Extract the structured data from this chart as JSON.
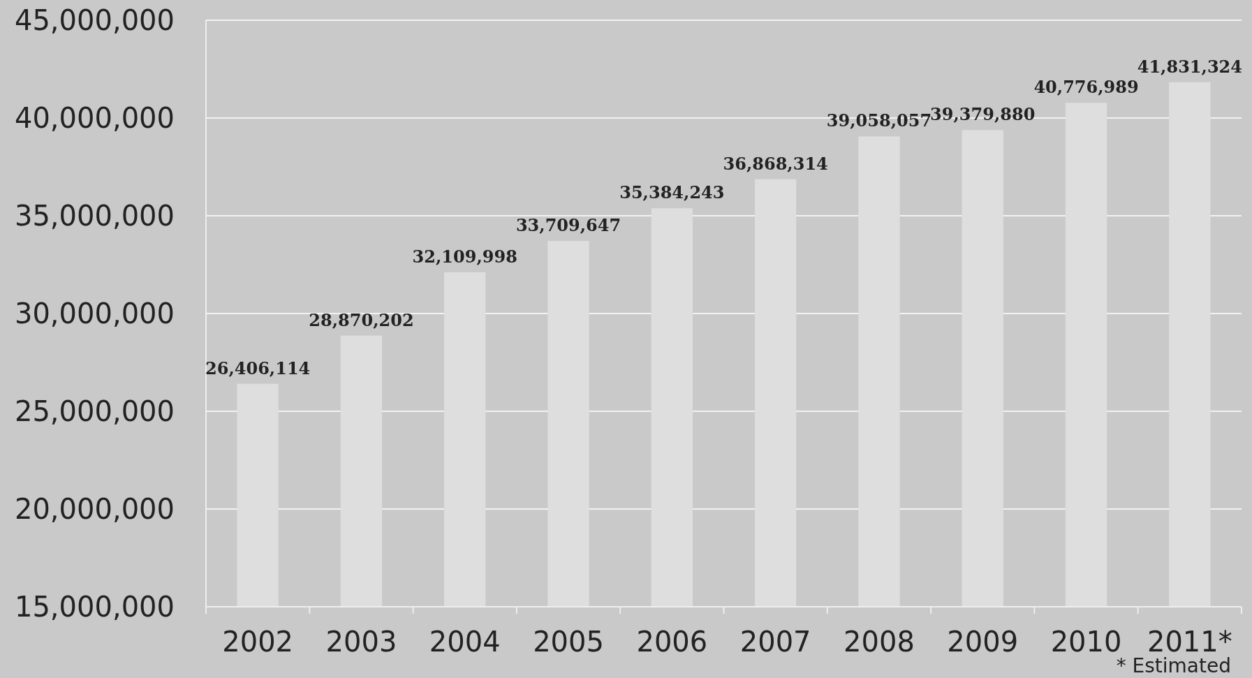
{
  "chart_data": {
    "type": "bar",
    "categories": [
      "2002",
      "2003",
      "2004",
      "2005",
      "2006",
      "2007",
      "2008",
      "2009",
      "2010",
      "2011*"
    ],
    "values": [
      26406114,
      28870202,
      32109998,
      33709647,
      35384243,
      36868314,
      39058057,
      39379880,
      40776989,
      41831324
    ],
    "value_labels": [
      "26,406,114",
      "28,870,202",
      "32,109,998",
      "33,709,647",
      "35,384,243",
      "36,868,314",
      "39,058,057",
      "39,379,880",
      "40,776,989",
      "41,831,324"
    ],
    "color": "#dedede",
    "ylim": [
      15000000,
      45000000
    ],
    "yticks": [
      {
        "value": 15000000,
        "label": "15,000,000"
      },
      {
        "value": 20000000,
        "label": "20,000,000"
      },
      {
        "value": 25000000,
        "label": "25,000,000"
      },
      {
        "value": 30000000,
        "label": "30,000,000"
      },
      {
        "value": 35000000,
        "label": "35,000,000"
      },
      {
        "value": 40000000,
        "label": "40,000,000"
      },
      {
        "value": 45000000,
        "label": "45,000,000"
      }
    ],
    "grid": "y",
    "annotations": [
      "* Estimated"
    ]
  }
}
